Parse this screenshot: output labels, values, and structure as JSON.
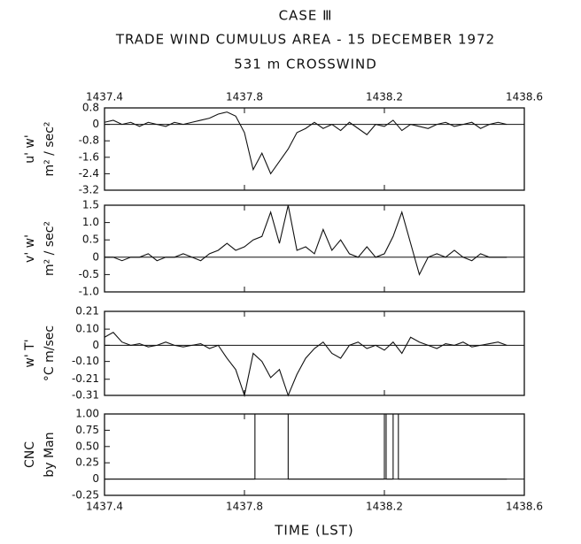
{
  "header": {
    "lines": [
      "CASE Ⅲ",
      "TRADE WIND CUMULUS AREA - 15 DECEMBER 1972",
      "531 m CROSSWIND"
    ]
  },
  "chart_data": [
    {
      "type": "line",
      "ylabel": [
        "u' w'",
        "m² / sec²"
      ],
      "color": "#111111",
      "xlim": [
        1437.4,
        1438.6
      ],
      "xticks": [
        1437.4,
        1437.8,
        1438.2,
        1438.6
      ],
      "xtick_label_side": "top",
      "ylim": [
        -3.2,
        0.8
      ],
      "yticks": [
        0.8,
        0,
        -0.8,
        -1.6,
        -2.4,
        -3.2
      ],
      "x": [
        1437.4,
        1437.425,
        1437.45,
        1437.475,
        1437.5,
        1437.525,
        1437.55,
        1437.575,
        1437.6,
        1437.625,
        1437.65,
        1437.675,
        1437.7,
        1437.725,
        1437.75,
        1437.775,
        1437.8,
        1437.825,
        1437.85,
        1437.875,
        1437.9,
        1437.925,
        1437.95,
        1437.975,
        1438,
        1438.025,
        1438.05,
        1438.075,
        1438.1,
        1438.125,
        1438.15,
        1438.175,
        1438.2,
        1438.225,
        1438.25,
        1438.275,
        1438.3,
        1438.325,
        1438.35,
        1438.375,
        1438.4,
        1438.425,
        1438.45,
        1438.475,
        1438.5,
        1438.525,
        1438.55
      ],
      "values": [
        0.1,
        0.2,
        0,
        0.1,
        -0.1,
        0.1,
        0,
        -0.1,
        0.1,
        0,
        0.1,
        0.2,
        0.3,
        0.5,
        0.6,
        0.4,
        -0.4,
        -2.2,
        -1.4,
        -2.4,
        -1.8,
        -1.2,
        -0.4,
        -0.2,
        0.1,
        -0.2,
        0,
        -0.3,
        0.1,
        -0.2,
        -0.5,
        0,
        -0.1,
        0.2,
        -0.3,
        0,
        -0.1,
        -0.2,
        0,
        0.1,
        -0.1,
        0,
        0.1,
        -0.2,
        0,
        0.1,
        0
      ]
    },
    {
      "type": "line",
      "ylabel": [
        "v' w'",
        "m² / sec²"
      ],
      "color": "#111111",
      "xlim": [
        1437.4,
        1438.6
      ],
      "xticks": [
        1437.4,
        1437.8,
        1438.2,
        1438.6
      ],
      "xtick_label_side": "none",
      "ylim": [
        -1,
        1.5
      ],
      "yticks": [
        1.5,
        {
          "value": 1,
          "label": "1.0"
        },
        0.5,
        0,
        -0.5,
        {
          "value": -1,
          "label": "-1.0"
        }
      ],
      "x": [
        1437.4,
        1437.425,
        1437.45,
        1437.475,
        1437.5,
        1437.525,
        1437.55,
        1437.575,
        1437.6,
        1437.625,
        1437.65,
        1437.675,
        1437.7,
        1437.725,
        1437.75,
        1437.775,
        1437.8,
        1437.825,
        1437.85,
        1437.875,
        1437.9,
        1437.925,
        1437.95,
        1437.975,
        1438,
        1438.025,
        1438.05,
        1438.075,
        1438.1,
        1438.125,
        1438.15,
        1438.175,
        1438.2,
        1438.225,
        1438.25,
        1438.275,
        1438.3,
        1438.325,
        1438.35,
        1438.375,
        1438.4,
        1438.425,
        1438.45,
        1438.475,
        1438.5,
        1438.525,
        1438.55
      ],
      "values": [
        0,
        0,
        -0.1,
        0,
        0,
        0.1,
        -0.1,
        0,
        0,
        0.1,
        0,
        -0.1,
        0.1,
        0.2,
        0.4,
        0.2,
        0.3,
        0.5,
        0.6,
        1.3,
        0.4,
        1.5,
        0.2,
        0.3,
        0.1,
        0.8,
        0.2,
        0.5,
        0.1,
        0,
        0.3,
        0,
        0.1,
        0.6,
        1.3,
        0.4,
        -0.5,
        0,
        0.1,
        0,
        0.2,
        0,
        -0.1,
        0.1,
        0,
        0,
        0
      ]
    },
    {
      "type": "line",
      "ylabel": [
        "w' T'",
        "°C m/sec"
      ],
      "color": "#111111",
      "xlim": [
        1437.4,
        1438.6
      ],
      "xticks": [
        1437.4,
        1437.8,
        1438.2,
        1438.6
      ],
      "xtick_label_side": "none",
      "ylim": [
        -0.31,
        0.21
      ],
      "yticks": [
        0.21,
        {
          "value": 0.1,
          "label": "0.10"
        },
        0,
        {
          "value": -0.1,
          "label": "-0.10"
        },
        -0.21,
        -0.31
      ],
      "x": [
        1437.4,
        1437.425,
        1437.45,
        1437.475,
        1437.5,
        1437.525,
        1437.55,
        1437.575,
        1437.6,
        1437.625,
        1437.65,
        1437.675,
        1437.7,
        1437.725,
        1437.75,
        1437.775,
        1437.8,
        1437.825,
        1437.85,
        1437.875,
        1437.9,
        1437.925,
        1437.95,
        1437.975,
        1438,
        1438.025,
        1438.05,
        1438.075,
        1438.1,
        1438.125,
        1438.15,
        1438.175,
        1438.2,
        1438.225,
        1438.25,
        1438.275,
        1438.3,
        1438.325,
        1438.35,
        1438.375,
        1438.4,
        1438.425,
        1438.45,
        1438.475,
        1438.5,
        1438.525,
        1438.55
      ],
      "values": [
        0.05,
        0.08,
        0.02,
        0,
        0.01,
        -0.01,
        0,
        0.02,
        0,
        -0.01,
        0,
        0.01,
        -0.02,
        0,
        -0.08,
        -0.15,
        -0.31,
        -0.05,
        -0.1,
        -0.2,
        -0.15,
        -0.31,
        -0.18,
        -0.08,
        -0.02,
        0.02,
        -0.05,
        -0.08,
        0,
        0.02,
        -0.02,
        0,
        -0.03,
        0.02,
        -0.05,
        0.05,
        0.02,
        0,
        -0.02,
        0.01,
        0,
        0.02,
        -0.01,
        0,
        0.01,
        0.02,
        0
      ]
    },
    {
      "type": "line",
      "ylabel": [
        "CNC",
        "by Man"
      ],
      "xlabel": "TIME (LST)",
      "color": "#111111",
      "xlim": [
        1437.4,
        1438.6
      ],
      "xticks": [
        1437.4,
        1437.8,
        1438.2,
        1438.6
      ],
      "xtick_label_side": "bottom",
      "ylim": [
        -0.25,
        1
      ],
      "yticks": [
        {
          "value": 1,
          "label": "1.00"
        },
        0.75,
        {
          "value": 0.5,
          "label": "0.50"
        },
        0.25,
        0,
        -0.25
      ],
      "x": [
        1437.4,
        1437.83,
        1437.83,
        1437.925,
        1437.925,
        1438.2,
        1438.2,
        1438.205,
        1438.205,
        1438.225,
        1438.225,
        1438.24,
        1438.24,
        1438.55
      ],
      "values": [
        0,
        0,
        1,
        1,
        0,
        0,
        1,
        1,
        0,
        0,
        1,
        1,
        0,
        0
      ]
    }
  ]
}
